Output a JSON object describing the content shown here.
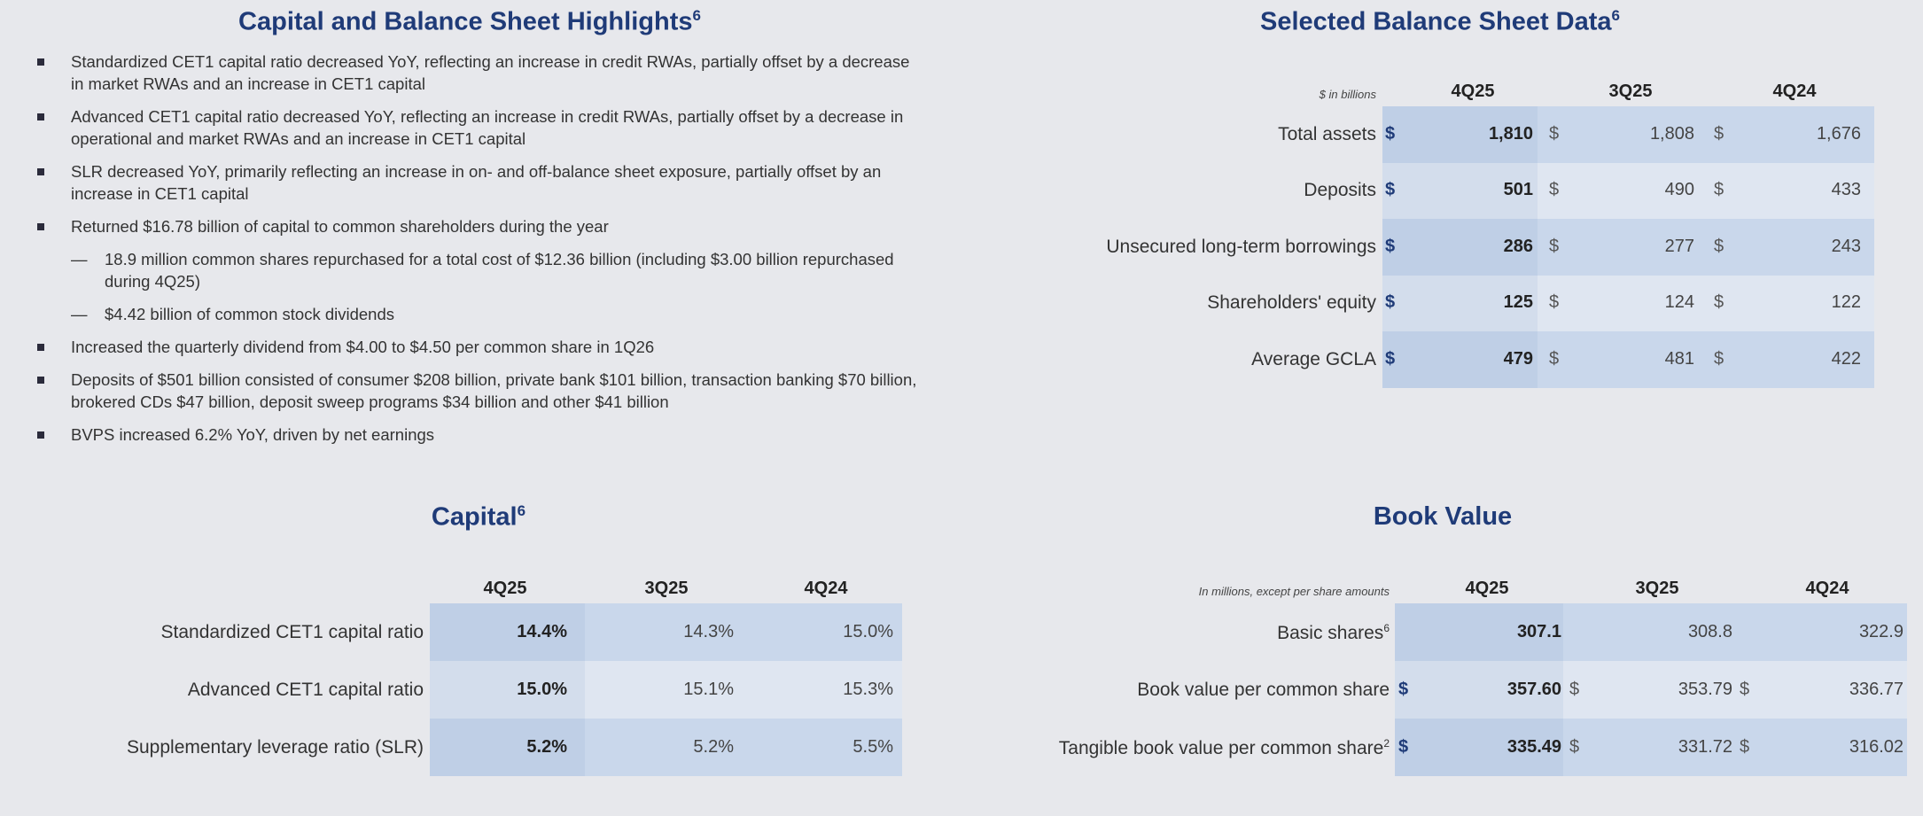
{
  "highlights": {
    "title": "Capital and Balance Sheet Highlights",
    "title_sup": "6",
    "bullets": [
      {
        "text": "Standardized CET1 capital ratio decreased YoY, reflecting an increase in credit RWAs, partially offset by a decrease in market RWAs and an increase in CET1 capital",
        "subs": []
      },
      {
        "text": "Advanced CET1 capital ratio decreased YoY, reflecting an increase in credit RWAs, partially offset by a decrease in operational and market RWAs and an increase in CET1 capital",
        "subs": []
      },
      {
        "text": "SLR decreased YoY, primarily reflecting an increase in on- and off-balance sheet exposure, partially offset by an increase in CET1 capital",
        "subs": []
      },
      {
        "text": "Returned $16.78 billion of capital to common shareholders during the year",
        "subs": [
          "18.9 million common shares repurchased for a total cost of $12.36 billion (including $3.00 billion repurchased during 4Q25)",
          "$4.42 billion of common stock dividends"
        ]
      },
      {
        "text": "Increased the quarterly dividend from $4.00 to $4.50 per common share in 1Q26",
        "subs": []
      },
      {
        "text": "Deposits of $501 billion consisted of consumer $208 billion, private bank $101 billion, transaction banking $70 billion, brokered CDs $47 billion, deposit sweep programs $34 billion and other $41 billion",
        "subs": []
      },
      {
        "text": "BVPS increased 6.2% YoY, driven by net earnings",
        "subs": []
      }
    ]
  },
  "balance_sheet": {
    "title": "Selected Balance Sheet Data",
    "title_sup": "6",
    "note": "$ in billions",
    "columns": [
      "4Q25",
      "3Q25",
      "4Q24"
    ],
    "rows": [
      {
        "label": "Total assets",
        "signs": [
          "$",
          "$",
          "$"
        ],
        "values": [
          "1,810",
          "1,808",
          "1,676"
        ]
      },
      {
        "label": "Deposits",
        "signs": [
          "$",
          "$",
          "$"
        ],
        "values": [
          "501",
          "490",
          "433"
        ]
      },
      {
        "label": "Unsecured long-term borrowings",
        "signs": [
          "$",
          "$",
          "$"
        ],
        "values": [
          "286",
          "277",
          "243"
        ]
      },
      {
        "label": "Shareholders' equity",
        "signs": [
          "$",
          "$",
          "$"
        ],
        "values": [
          "125",
          "124",
          "122"
        ]
      },
      {
        "label": "Average GCLA",
        "signs": [
          "$",
          "$",
          "$"
        ],
        "values": [
          "479",
          "481",
          "422"
        ]
      }
    ]
  },
  "capital": {
    "title": "Capital",
    "title_sup": "6",
    "columns": [
      "4Q25",
      "3Q25",
      "4Q24"
    ],
    "rows": [
      {
        "label": "Standardized CET1 capital ratio",
        "values": [
          "14.4%",
          "14.3%",
          "15.0%"
        ]
      },
      {
        "label": "Advanced CET1 capital ratio",
        "values": [
          "15.0%",
          "15.1%",
          "15.3%"
        ]
      },
      {
        "label": "Supplementary leverage ratio (SLR)",
        "values": [
          "5.2%",
          "5.2%",
          "5.5%"
        ]
      }
    ]
  },
  "book_value": {
    "title": "Book Value",
    "note": "In millions, except per share amounts",
    "columns": [
      "4Q25",
      "3Q25",
      "4Q24"
    ],
    "rows": [
      {
        "label": "Basic shares",
        "label_sup": "6",
        "values": [
          "307.1",
          "308.8",
          "322.9"
        ]
      },
      {
        "label": "Book value per common share",
        "signs": [
          "$",
          "$",
          "$"
        ],
        "values": [
          "357.60",
          "353.79",
          "336.77"
        ]
      },
      {
        "label": "Tangible book value per common share",
        "label_sup": "2",
        "signs": [
          "$",
          "$",
          "$"
        ],
        "values": [
          "335.49",
          "331.72",
          "316.02"
        ]
      }
    ]
  }
}
